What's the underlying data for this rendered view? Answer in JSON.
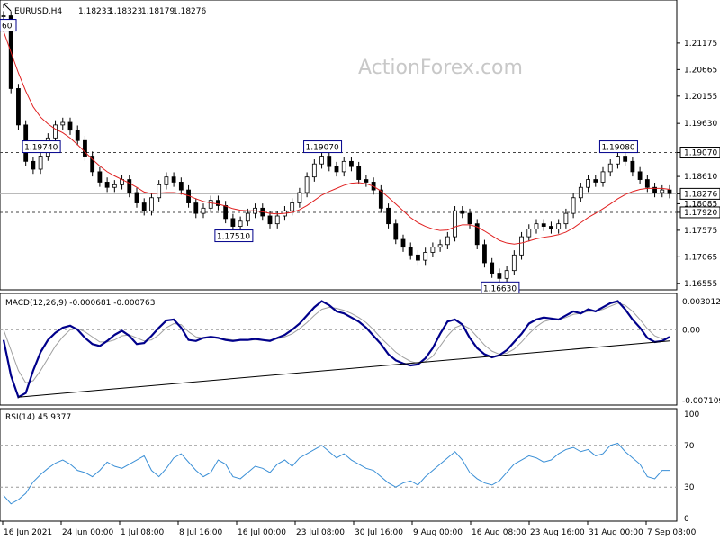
{
  "header": {
    "symbol": "EURUSD,H4",
    "open": "1.18233",
    "high": "1.18323",
    "low": "1.18179",
    "close": "1.18276"
  },
  "watermark": "ActionForex.com",
  "colors": {
    "candle": "#000000",
    "ma": "#e02020",
    "macd_main": "#00008b",
    "macd_signal": "#a0a0a0",
    "rsi": "#3a8fd6",
    "level_box": "#00008b"
  },
  "chart_data": [
    {
      "type": "line",
      "subtype": "candlestick",
      "title": "EURUSD,H4",
      "ylim": [
        1.165,
        1.219
      ],
      "yticks": [
        "1.21175",
        "1.20665",
        "1.20155",
        "1.19630",
        "1.19070",
        "1.18610",
        "1.18276",
        "1.18085",
        "1.17920",
        "1.17575",
        "1.17065",
        "1.16555"
      ],
      "xticks": [
        "16 Jun 2021",
        "24 Jun 00:00",
        "1 Jul 08:00",
        "8 Jul 16:00",
        "16 Jul 00:00",
        "23 Jul 08:00",
        "30 Jul 16:00",
        "9 Aug 00:00",
        "16 Aug 08:00",
        "23 Aug 16:00",
        "31 Aug 00:00",
        "7 Sep 08:00"
      ],
      "price_series": [
        1.217,
        1.203,
        1.196,
        1.189,
        1.1875,
        1.19,
        1.1935,
        1.196,
        1.1965,
        1.195,
        1.193,
        1.19,
        1.187,
        1.185,
        1.184,
        1.1845,
        1.1855,
        1.183,
        1.181,
        1.1795,
        1.182,
        1.1845,
        1.186,
        1.185,
        1.1835,
        1.181,
        1.179,
        1.18,
        1.1815,
        1.1805,
        1.178,
        1.1765,
        1.1775,
        1.179,
        1.18,
        1.1785,
        1.177,
        1.1785,
        1.1795,
        1.181,
        1.183,
        1.186,
        1.1885,
        1.19,
        1.188,
        1.187,
        1.189,
        1.188,
        1.1855,
        1.185,
        1.1835,
        1.18,
        1.177,
        1.174,
        1.1725,
        1.171,
        1.17,
        1.1715,
        1.1725,
        1.173,
        1.1745,
        1.1795,
        1.179,
        1.177,
        1.173,
        1.1695,
        1.1675,
        1.1665,
        1.168,
        1.171,
        1.1745,
        1.176,
        1.177,
        1.1765,
        1.176,
        1.177,
        1.179,
        1.182,
        1.184,
        1.1855,
        1.185,
        1.187,
        1.1885,
        1.19,
        1.189,
        1.187,
        1.1855,
        1.184,
        1.183,
        1.1835,
        1.1828
      ],
      "ma_series": [
        1.214,
        1.21,
        1.206,
        1.2025,
        1.1995,
        1.1975,
        1.1962,
        1.1952,
        1.1945,
        1.1935,
        1.1922,
        1.1908,
        1.1894,
        1.1881,
        1.187,
        1.1862,
        1.1855,
        1.1848,
        1.184,
        1.1831,
        1.1828,
        1.1829,
        1.183,
        1.183,
        1.1828,
        1.1824,
        1.1818,
        1.1813,
        1.181,
        1.1808,
        1.1804,
        1.1799,
        1.1796,
        1.1795,
        1.1795,
        1.1793,
        1.179,
        1.1789,
        1.179,
        1.1792,
        1.1797,
        1.1805,
        1.1815,
        1.1825,
        1.1832,
        1.1838,
        1.1844,
        1.1848,
        1.1849,
        1.1847,
        1.1842,
        1.1833,
        1.1821,
        1.1808,
        1.1795,
        1.1782,
        1.1772,
        1.1765,
        1.176,
        1.1757,
        1.1758,
        1.1764,
        1.1768,
        1.1768,
        1.1764,
        1.1756,
        1.1747,
        1.1738,
        1.1733,
        1.1731,
        1.1733,
        1.1737,
        1.1741,
        1.1744,
        1.1746,
        1.1749,
        1.1754,
        1.1762,
        1.1772,
        1.1782,
        1.179,
        1.1799,
        1.1808,
        1.1818,
        1.1826,
        1.1832,
        1.1836,
        1.1838,
        1.1838,
        1.1838,
        1.1836
      ],
      "horizontal_levels": [
        {
          "value": 1.1907,
          "label": "1.19070",
          "style": "dashed"
        },
        {
          "value": 1.18276,
          "label": "1.18276",
          "style": "solid"
        },
        {
          "value": 1.1792,
          "label": "1.17920",
          "style": "dashed"
        }
      ],
      "annotations": [
        {
          "label": "1.19740",
          "index": 5
        },
        {
          "label": "1.19070",
          "index": 43
        },
        {
          "label": "1.17510",
          "index": 31
        },
        {
          "label": "1.16630",
          "index": 67
        },
        {
          "label": "1.19080",
          "index": 83
        },
        {
          "label": "60",
          "index": 0
        }
      ]
    },
    {
      "type": "line",
      "title": "MACD(12,26,9) -0.000681 -0.000763",
      "ylim": [
        -0.0072,
        0.0032
      ],
      "yticks": [
        "0.003012",
        "0.00",
        "-0.007109"
      ],
      "series": [
        {
          "role": "main",
          "values": [
            -0.001,
            -0.0045,
            -0.0066,
            -0.0062,
            -0.004,
            -0.0022,
            -0.001,
            -0.0003,
            0.0002,
            0.0004,
            0.0,
            -0.0008,
            -0.0014,
            -0.0016,
            -0.0011,
            -0.0005,
            -0.0001,
            -0.0006,
            -0.0014,
            -0.0013,
            -0.0006,
            0.0002,
            0.0009,
            0.001,
            0.0002,
            -0.001,
            -0.0011,
            -0.0008,
            -0.0007,
            -0.0008,
            -0.001,
            -0.0011,
            -0.001,
            -0.001,
            -0.0009,
            -0.001,
            -0.0011,
            -0.0008,
            -0.0005,
            0.0,
            0.0006,
            0.0014,
            0.0022,
            0.0028,
            0.0024,
            0.0018,
            0.0016,
            0.0012,
            0.0008,
            0.0002,
            -0.0006,
            -0.0014,
            -0.0024,
            -0.003,
            -0.0033,
            -0.0035,
            -0.0034,
            -0.0028,
            -0.0018,
            -0.0004,
            0.0008,
            0.001,
            0.0005,
            -0.0008,
            -0.0018,
            -0.0024,
            -0.0027,
            -0.0025,
            -0.002,
            -0.0012,
            -0.0004,
            0.0006,
            0.001,
            0.0012,
            0.0011,
            0.001,
            0.0014,
            0.0018,
            0.0016,
            0.002,
            0.0018,
            0.0022,
            0.0026,
            0.0028,
            0.002,
            0.001,
            0.0002,
            -0.0008,
            -0.0012,
            -0.0011,
            -0.0007
          ]
        },
        {
          "role": "signal",
          "values": [
            0.0,
            -0.002,
            -0.004,
            -0.0052,
            -0.005,
            -0.004,
            -0.0028,
            -0.0016,
            -0.0007,
            0.0,
            0.0001,
            -0.0002,
            -0.0007,
            -0.0012,
            -0.0012,
            -0.001,
            -0.0006,
            -0.0005,
            -0.0008,
            -0.0011,
            -0.001,
            -0.0005,
            0.0002,
            0.0006,
            0.0005,
            -0.0002,
            -0.0007,
            -0.0008,
            -0.0008,
            -0.0008,
            -0.0009,
            -0.001,
            -0.001,
            -0.001,
            -0.001,
            -0.001,
            -0.001,
            -0.0009,
            -0.0007,
            -0.0004,
            0.0001,
            0.0007,
            0.0014,
            0.002,
            0.0022,
            0.0021,
            0.0019,
            0.0016,
            0.0012,
            0.0007,
            0.0,
            -0.0008,
            -0.0015,
            -0.0022,
            -0.0027,
            -0.0031,
            -0.0033,
            -0.0031,
            -0.0026,
            -0.0016,
            -0.0006,
            0.0002,
            0.0005,
            0.0001,
            -0.0007,
            -0.0015,
            -0.0021,
            -0.0024,
            -0.0023,
            -0.0019,
            -0.0012,
            -0.0004,
            0.0003,
            0.0008,
            0.001,
            0.001,
            0.0012,
            0.0015,
            0.0016,
            0.0018,
            0.0018,
            0.002,
            0.0023,
            0.0026,
            0.0024,
            0.0018,
            0.001,
            0.0001,
            -0.0006,
            -0.0009,
            -0.0008
          ]
        }
      ],
      "trendline": {
        "from_index": 2,
        "from_value": -0.0066,
        "to_index": 90,
        "to_value": -0.0011
      }
    },
    {
      "type": "line",
      "title": "RSI(14) 45.9377",
      "ylim": [
        0,
        100
      ],
      "yticks": [
        "100",
        "70",
        "30",
        "0"
      ],
      "levels": [
        70,
        30
      ],
      "values": [
        22,
        14,
        18,
        24,
        35,
        42,
        48,
        53,
        56,
        52,
        46,
        44,
        40,
        46,
        54,
        50,
        48,
        52,
        56,
        60,
        46,
        40,
        48,
        58,
        62,
        54,
        46,
        40,
        44,
        56,
        52,
        40,
        38,
        44,
        50,
        48,
        44,
        52,
        56,
        50,
        58,
        62,
        66,
        70,
        64,
        58,
        62,
        56,
        52,
        48,
        46,
        40,
        34,
        30,
        34,
        36,
        32,
        40,
        46,
        52,
        58,
        64,
        56,
        44,
        38,
        34,
        32,
        36,
        44,
        52,
        56,
        60,
        58,
        54,
        56,
        62,
        66,
        68,
        64,
        66,
        60,
        62,
        70,
        72,
        64,
        58,
        52,
        40,
        38,
        46,
        46
      ]
    }
  ]
}
